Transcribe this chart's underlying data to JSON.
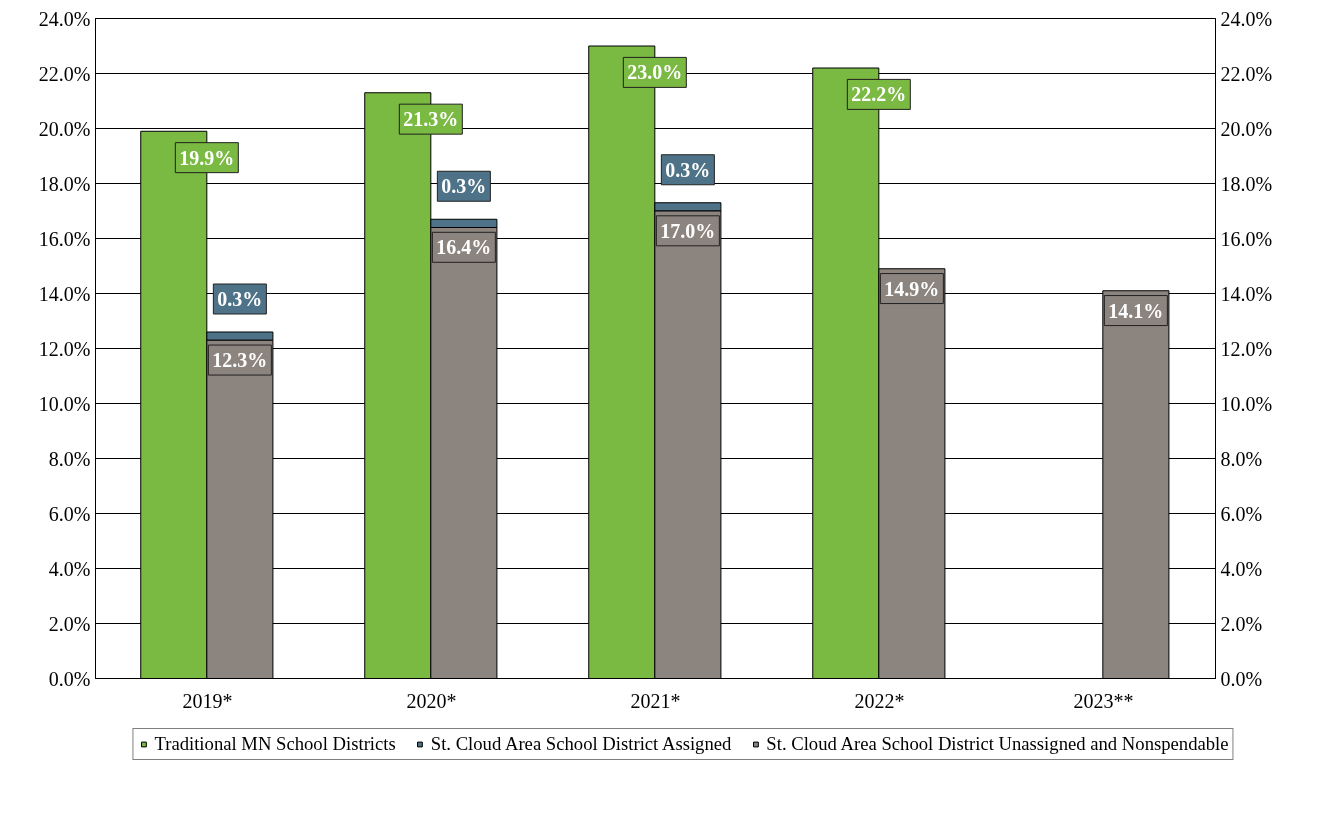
{
  "chart_data": {
    "type": "bar",
    "categories": [
      "2019*",
      "2020*",
      "2021*",
      "2022*",
      "2023**"
    ],
    "series": [
      {
        "name": "Traditional MN School Districts",
        "color": "#7ab942",
        "values": [
          19.9,
          21.3,
          23.0,
          22.2,
          null
        ],
        "value_labels": [
          "19.9%",
          "21.3%",
          "23.0%",
          "22.2%",
          null
        ]
      },
      {
        "name": "St. Cloud Area School District Assigned",
        "color": "#4e7388",
        "values": [
          0.3,
          0.3,
          0.3,
          null,
          null
        ],
        "base": [
          12.3,
          16.4,
          17.0,
          null,
          null
        ],
        "value_labels": [
          "0.3%",
          "0.3%",
          "0.3%",
          null,
          null
        ]
      },
      {
        "name": "St. Cloud Area School District Unassigned and Nonspendable",
        "color": "#8c847e",
        "values": [
          12.3,
          16.4,
          17.0,
          14.9,
          14.1
        ],
        "value_labels": [
          "12.3%",
          "16.4%",
          "17.0%",
          "14.9%",
          "14.1%"
        ]
      }
    ],
    "grid": "y",
    "legend": "bottom",
    "ylim": [
      0,
      24
    ],
    "yticks": [
      {
        "value": 0,
        "label": "0.0%"
      },
      {
        "value": 2,
        "label": "2.0%"
      },
      {
        "value": 4,
        "label": "4.0%"
      },
      {
        "value": 6,
        "label": "6.0%"
      },
      {
        "value": 8,
        "label": "8.0%"
      },
      {
        "value": 10,
        "label": "10.0%"
      },
      {
        "value": 12,
        "label": "12.0%"
      },
      {
        "value": 14,
        "label": "14.0%"
      },
      {
        "value": 16,
        "label": "16.0%"
      },
      {
        "value": 18,
        "label": "18.0%"
      },
      {
        "value": 20,
        "label": "20.0%"
      },
      {
        "value": 22,
        "label": "22.0%"
      },
      {
        "value": 24,
        "label": "24.0%"
      }
    ],
    "y2lim": [
      0,
      24
    ],
    "y2ticks": [
      {
        "value": 0,
        "label": "0.0%"
      },
      {
        "value": 2,
        "label": "2.0%"
      },
      {
        "value": 4,
        "label": "4.0%"
      },
      {
        "value": 6,
        "label": "6.0%"
      },
      {
        "value": 8,
        "label": "8.0%"
      },
      {
        "value": 10,
        "label": "10.0%"
      },
      {
        "value": 12,
        "label": "12.0%"
      },
      {
        "value": 14,
        "label": "14.0%"
      },
      {
        "value": 16,
        "label": "16.0%"
      },
      {
        "value": 18,
        "label": "18.0%"
      },
      {
        "value": 20,
        "label": "20.0%"
      },
      {
        "value": 22,
        "label": "22.0%"
      },
      {
        "value": 24,
        "label": "24.0%"
      }
    ]
  }
}
